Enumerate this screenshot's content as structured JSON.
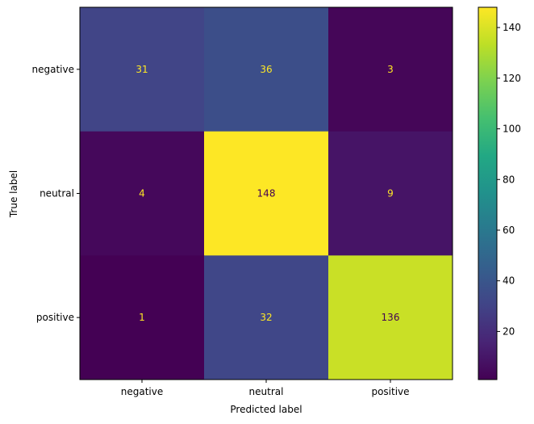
{
  "chart_data": {
    "type": "heatmap",
    "xlabel": "Predicted label",
    "ylabel": "True label",
    "x_categories": [
      "negative",
      "neutral",
      "positive"
    ],
    "y_categories": [
      "negative",
      "neutral",
      "positive"
    ],
    "matrix": [
      [
        31,
        36,
        3
      ],
      [
        4,
        148,
        9
      ],
      [
        1,
        32,
        136
      ]
    ],
    "colormap": "viridis",
    "color_range": [
      1,
      148
    ],
    "colorbar": {
      "ticks": [
        20,
        40,
        60,
        80,
        100,
        120,
        140
      ],
      "placement": "right"
    },
    "text_colors": {
      "on_dark": "#fde725",
      "on_light": "#440154"
    },
    "grid": false
  }
}
